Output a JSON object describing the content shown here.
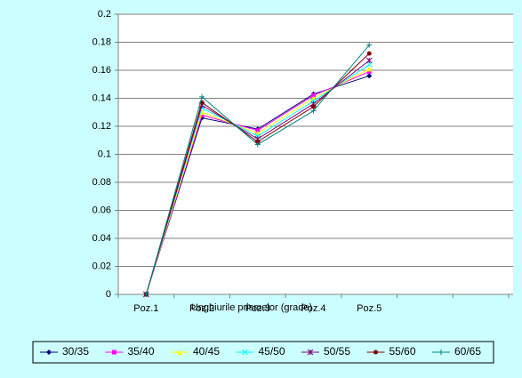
{
  "chart_data": {
    "type": "line",
    "x_label": "Unghiurile prismelor (grade)",
    "categories": [
      "Poz.1",
      "Poz.2",
      "Poz.3",
      "Poz.4",
      "Poz.5",
      null,
      null
    ],
    "series": [
      {
        "name": "30/35",
        "color": "#000080",
        "marker": "diamond",
        "values": [
          0,
          0.126,
          0.118,
          0.143,
          0.156,
          null,
          null
        ]
      },
      {
        "name": "35/40",
        "color": "#ff00ff",
        "marker": "square",
        "values": [
          0,
          0.128,
          0.117,
          0.142,
          0.159,
          null,
          null
        ]
      },
      {
        "name": "40/45",
        "color": "#ffff00",
        "marker": "triangle",
        "values": [
          0,
          0.13,
          0.115,
          0.14,
          0.161,
          null,
          null
        ]
      },
      {
        "name": "45/50",
        "color": "#00ffff",
        "marker": "cross",
        "values": [
          0,
          0.133,
          0.113,
          0.138,
          0.164,
          null,
          null
        ]
      },
      {
        "name": "50/55",
        "color": "#800080",
        "marker": "star",
        "values": [
          0,
          0.135,
          0.111,
          0.136,
          0.167,
          null,
          null
        ]
      },
      {
        "name": "55/60",
        "color": "#800000",
        "marker": "circle",
        "values": [
          0,
          0.137,
          0.109,
          0.134,
          0.172,
          null,
          null
        ]
      },
      {
        "name": "60/65",
        "color": "#008080",
        "marker": "plus",
        "values": [
          0,
          0.141,
          0.107,
          0.131,
          0.178,
          null,
          null
        ]
      }
    ],
    "ylim": [
      0,
      0.2
    ],
    "yticks": [
      0,
      0.02,
      0.04,
      0.06,
      0.08,
      0.1,
      0.12,
      0.14,
      0.16,
      0.18,
      0.2
    ],
    "grid": true,
    "legend": "bottom"
  }
}
